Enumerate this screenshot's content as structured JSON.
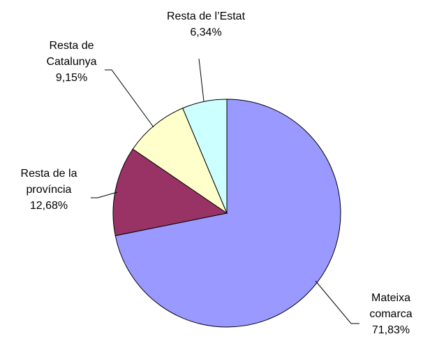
{
  "chart_data": {
    "type": "pie",
    "categories": [
      "Mateixa comarca",
      "Resta de la província",
      "Resta de Catalunya",
      "Resta de l’Estat"
    ],
    "values": [
      71.83,
      12.68,
      9.15,
      6.34
    ],
    "value_labels": [
      "71,83%",
      "12,68%",
      "9,15%",
      "6,34%"
    ],
    "colors": [
      "#9999ff",
      "#993366",
      "#ffffcc",
      "#ccffff"
    ]
  }
}
